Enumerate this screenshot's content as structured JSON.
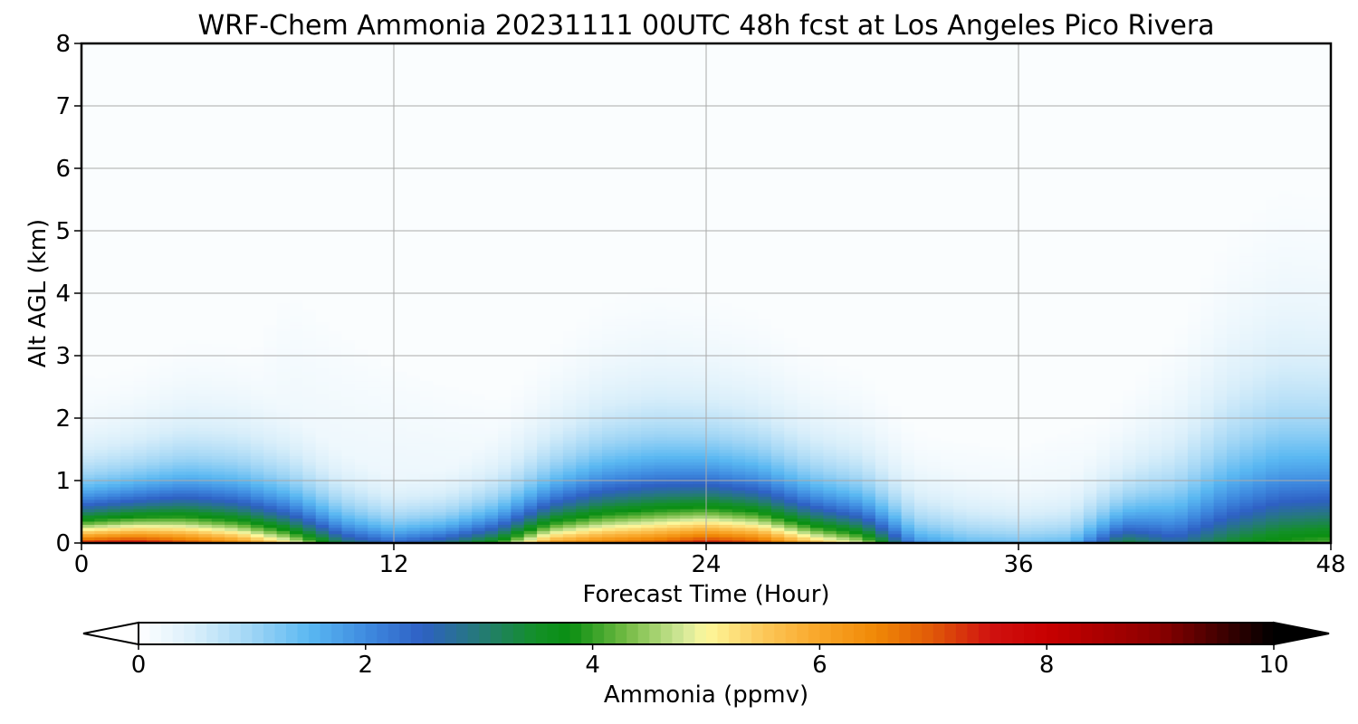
{
  "chart_data": {
    "type": "heatmap",
    "title": "WRF-Chem Ammonia  20231111 00UTC 48h fcst at Los Angeles Pico Rivera",
    "xlabel": "Forecast Time (Hour)",
    "ylabel": "Alt AGL (km)",
    "xlim": [
      0,
      48
    ],
    "ylim": [
      0,
      8
    ],
    "x_ticks": [
      "0",
      "12",
      "24",
      "36",
      "48"
    ],
    "y_ticks": [
      "0",
      "1",
      "2",
      "3",
      "4",
      "5",
      "6",
      "7",
      "8"
    ],
    "grid": true,
    "colorbar": {
      "label": "Ammonia  (ppmv)",
      "range": [
        0,
        10
      ],
      "ticks": [
        "0",
        "2",
        "4",
        "6",
        "8",
        "10"
      ],
      "extend": "both",
      "stops": [
        {
          "v": 0,
          "c": "#ffffff"
        },
        {
          "v": 0.5,
          "c": "#d8eefa"
        },
        {
          "v": 1.0,
          "c": "#9fd5f5"
        },
        {
          "v": 1.5,
          "c": "#5ab8f2"
        },
        {
          "v": 2.0,
          "c": "#3f8be0"
        },
        {
          "v": 2.5,
          "c": "#2e60c4"
        },
        {
          "v": 3.0,
          "c": "#257a78"
        },
        {
          "v": 3.5,
          "c": "#139028"
        },
        {
          "v": 3.8,
          "c": "#0a8f12"
        },
        {
          "v": 4.3,
          "c": "#74bb44"
        },
        {
          "v": 4.8,
          "c": "#d4e89a"
        },
        {
          "v": 5.0,
          "c": "#fdf89c"
        },
        {
          "v": 5.5,
          "c": "#fcc85a"
        },
        {
          "v": 6.0,
          "c": "#f9a628"
        },
        {
          "v": 6.5,
          "c": "#f08806"
        },
        {
          "v": 7.0,
          "c": "#e05808"
        },
        {
          "v": 7.5,
          "c": "#d01210"
        },
        {
          "v": 8.0,
          "c": "#c80000"
        },
        {
          "v": 9.0,
          "c": "#8a0000"
        },
        {
          "v": 10.0,
          "c": "#000000"
        }
      ]
    },
    "series": [
      {
        "x": [
          0,
          2,
          4,
          6,
          8,
          10,
          12,
          14,
          16,
          18,
          20,
          22,
          24,
          26,
          28,
          30,
          32,
          34,
          36,
          38,
          40,
          42,
          44,
          46,
          48
        ],
        "surface": [
          7.5,
          7.8,
          7.2,
          6.5,
          5.2,
          3.2,
          2.5,
          3.0,
          4.0,
          6.2,
          6.7,
          7.0,
          7.6,
          7.2,
          5.8,
          4.8,
          2.0,
          1.5,
          1.4,
          1.5,
          3.5,
          2.8,
          3.5,
          4.0,
          4.2
        ],
        "depth_km": [
          0.55,
          0.6,
          0.7,
          0.7,
          0.65,
          0.55,
          0.45,
          0.45,
          0.55,
          0.7,
          0.85,
          0.9,
          0.85,
          0.8,
          0.7,
          0.65,
          0.55,
          0.5,
          0.45,
          0.5,
          0.6,
          0.9,
          1.25,
          1.4,
          1.35
        ],
        "top_km": [
          2.7,
          2.6,
          2.8,
          2.6,
          4.0,
          3.3,
          2.8,
          2.5,
          2.3,
          2.3,
          2.4,
          2.6,
          2.6,
          2.4,
          2.0,
          1.8,
          1.7,
          1.6,
          1.5,
          1.8,
          2.1,
          2.2,
          2.3,
          2.3,
          2.2
        ]
      }
    ]
  }
}
